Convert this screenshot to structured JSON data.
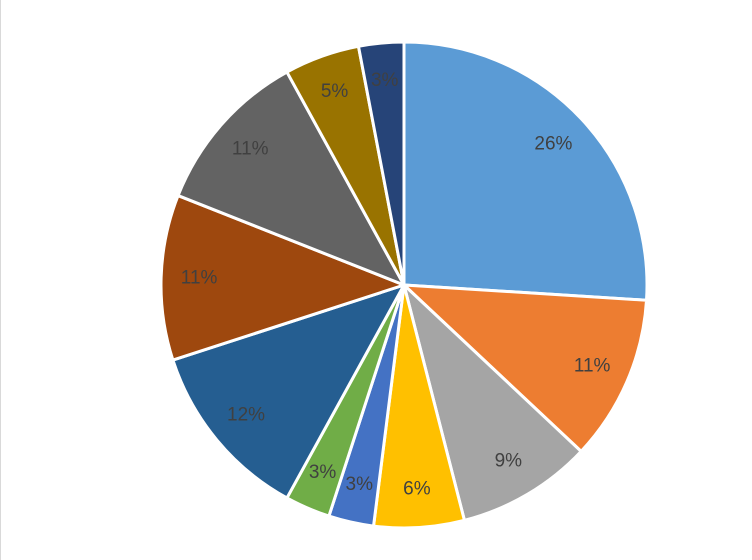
{
  "chart_data": {
    "type": "pie",
    "values": [
      26,
      11,
      9,
      6,
      3,
      3,
      12,
      11,
      11,
      5,
      3
    ],
    "value_labels": [
      "26%",
      "11%",
      "9%",
      "6%",
      "3%",
      "3%",
      "12%",
      "11%",
      "11%",
      "5%",
      "3%"
    ],
    "colors": [
      "#5b9bd5",
      "#ed7d31",
      "#a5a5a5",
      "#ffc000",
      "#4472c4",
      "#70ad47",
      "#255e91",
      "#9e480e",
      "#636363",
      "#997300",
      "#264478"
    ]
  }
}
